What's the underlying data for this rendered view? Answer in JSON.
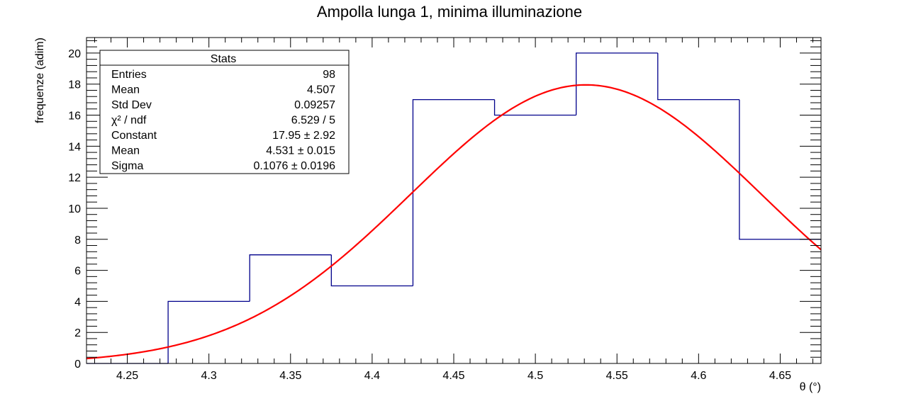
{
  "chart_data": {
    "type": "histogram",
    "title": "Ampolla lunga 1, minima illuminazione",
    "xlabel": "θ (°)",
    "ylabel": "frequenze (adim)",
    "xlim": [
      4.225,
      4.675
    ],
    "ylim": [
      0,
      21
    ],
    "x_tick_labels": [
      "4.25",
      "4.3",
      "4.35",
      "4.4",
      "4.45",
      "4.5",
      "4.55",
      "4.6",
      "4.65"
    ],
    "x_ticks": [
      4.25,
      4.3,
      4.35,
      4.4,
      4.45,
      4.5,
      4.55,
      4.6,
      4.65
    ],
    "y_tick_labels": [
      "0",
      "2",
      "4",
      "6",
      "8",
      "10",
      "12",
      "14",
      "16",
      "18",
      "20"
    ],
    "y_ticks": [
      0,
      2,
      4,
      6,
      8,
      10,
      12,
      14,
      16,
      18,
      20
    ],
    "bin_edges": [
      4.225,
      4.275,
      4.325,
      4.375,
      4.425,
      4.475,
      4.525,
      4.575,
      4.625,
      4.675
    ],
    "counts": [
      0,
      4,
      7,
      5,
      17,
      16,
      20,
      17,
      8
    ],
    "histogram_color": "#00008b",
    "fit": {
      "function": "gaus",
      "constant": 17.95,
      "mean": 4.531,
      "sigma": 0.1076,
      "color": "#ff0000",
      "range": [
        4.225,
        4.675
      ]
    },
    "stats_box": {
      "title": "Stats",
      "placement": "top-left",
      "rows": [
        {
          "label": "Entries",
          "value": "98"
        },
        {
          "label": "Mean",
          "value": "4.507"
        },
        {
          "label": "Std Dev",
          "value": "0.09257"
        },
        {
          "label": "χ² / ndf",
          "value": "6.529 / 5"
        },
        {
          "label": "Constant",
          "value": "17.95 ± 2.92"
        },
        {
          "label": "Mean",
          "value": "4.531 ± 0.015"
        },
        {
          "label": "Sigma",
          "value": "0.1076 ± 0.0196"
        }
      ]
    }
  }
}
